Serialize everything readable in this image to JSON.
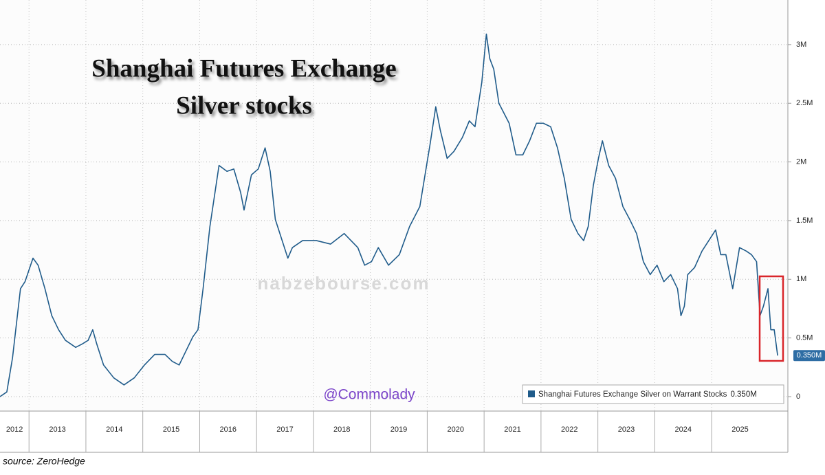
{
  "chart_data": {
    "type": "line",
    "title": [
      "Shanghai Futures Exchange",
      "Silver stocks"
    ],
    "source": "source: ZeroHedge",
    "watermark": "nabzebourse.com",
    "handle": "@Commolady",
    "legend": "lower right",
    "grid": true,
    "xlim": [
      2012.49,
      2026.34
    ],
    "xticks": [
      2012,
      2013,
      2014,
      2015,
      2016,
      2017,
      2018,
      2019,
      2020,
      2021,
      2022,
      2023,
      2024,
      2025
    ],
    "ylim": [
      -123000,
      3380000
    ],
    "yticks": [
      {
        "value": 0,
        "label": "0"
      },
      {
        "value": 500000,
        "label": "0.5M"
      },
      {
        "value": 1000000,
        "label": "1M"
      },
      {
        "value": 1500000,
        "label": "1.5M"
      },
      {
        "value": 2000000,
        "label": "2M"
      },
      {
        "value": 2500000,
        "label": "2.5M"
      },
      {
        "value": 3000000,
        "label": "3M"
      }
    ],
    "x": [
      2012.49,
      2012.61,
      2012.71,
      2012.85,
      2012.93,
      2013.07,
      2013.16,
      2013.28,
      2013.4,
      2013.52,
      2013.64,
      2013.82,
      2013.94,
      2014.04,
      2014.12,
      2014.19,
      2014.31,
      2014.49,
      2014.67,
      2014.85,
      2015.03,
      2015.21,
      2015.39,
      2015.52,
      2015.64,
      2015.76,
      2015.88,
      2015.97,
      2016.06,
      2016.18,
      2016.34,
      2016.48,
      2016.6,
      2016.72,
      2016.78,
      2016.91,
      2017.03,
      2017.15,
      2017.24,
      2017.33,
      2017.45,
      2017.55,
      2017.63,
      2017.81,
      2018.05,
      2018.3,
      2018.54,
      2018.66,
      2018.78,
      2018.9,
      2019.02,
      2019.14,
      2019.32,
      2019.51,
      2019.69,
      2019.87,
      2020.05,
      2020.15,
      2020.23,
      2020.35,
      2020.47,
      2020.62,
      2020.74,
      2020.84,
      2020.96,
      2021.04,
      2021.1,
      2021.17,
      2021.26,
      2021.44,
      2021.56,
      2021.68,
      2021.8,
      2021.92,
      2022.04,
      2022.17,
      2022.29,
      2022.41,
      2022.53,
      2022.65,
      2022.75,
      2022.83,
      2022.92,
      2023.01,
      2023.08,
      2023.19,
      2023.31,
      2023.44,
      2023.56,
      2023.68,
      2023.8,
      2023.92,
      2024.04,
      2024.16,
      2024.28,
      2024.4,
      2024.46,
      2024.52,
      2024.58,
      2024.7,
      2024.83,
      2024.95,
      2025.07,
      2025.16,
      2025.25,
      2025.37,
      2025.49,
      2025.61,
      2025.7,
      2025.79,
      2025.85,
      2025.91,
      2025.99,
      2026.04,
      2026.1,
      2026.16
    ],
    "series": [
      {
        "name": "Shanghai Futures Exchange Silver on Warrant Stocks",
        "color": "#1f5b8a",
        "values": [
          0,
          40000,
          330000,
          920000,
          980000,
          1180000,
          1120000,
          920000,
          690000,
          570000,
          480000,
          420000,
          450000,
          480000,
          570000,
          450000,
          270000,
          160000,
          100000,
          160000,
          270000,
          360000,
          360000,
          300000,
          270000,
          390000,
          510000,
          570000,
          920000,
          1450000,
          1970000,
          1920000,
          1940000,
          1740000,
          1590000,
          1890000,
          1940000,
          2120000,
          1920000,
          1510000,
          1330000,
          1180000,
          1270000,
          1330000,
          1330000,
          1300000,
          1390000,
          1330000,
          1270000,
          1120000,
          1150000,
          1270000,
          1120000,
          1210000,
          1450000,
          1620000,
          2150000,
          2470000,
          2270000,
          2030000,
          2090000,
          2210000,
          2350000,
          2300000,
          2680000,
          3090000,
          2880000,
          2790000,
          2500000,
          2330000,
          2060000,
          2060000,
          2180000,
          2330000,
          2330000,
          2300000,
          2120000,
          1860000,
          1510000,
          1390000,
          1330000,
          1450000,
          1800000,
          2030000,
          2180000,
          1970000,
          1860000,
          1620000,
          1510000,
          1390000,
          1150000,
          1040000,
          1120000,
          980000,
          1040000,
          920000,
          690000,
          770000,
          1040000,
          1100000,
          1240000,
          1330000,
          1420000,
          1210000,
          1210000,
          920000,
          1270000,
          1240000,
          1210000,
          1150000,
          690000,
          770000,
          920000,
          570000,
          570000,
          350000
        ],
        "value_labels": [
          null,
          null,
          null,
          null,
          null,
          null,
          null,
          null,
          null,
          null,
          null,
          null,
          null,
          null,
          null,
          null,
          null,
          null,
          null,
          null,
          null,
          null,
          null,
          null,
          null,
          null,
          null,
          null,
          null,
          null,
          null,
          null,
          null,
          null,
          null,
          null,
          null,
          null,
          null,
          null,
          null,
          null,
          null,
          null,
          null,
          null,
          null,
          null,
          null,
          null,
          null,
          null,
          null,
          null,
          null,
          null,
          null,
          null,
          null,
          null,
          null,
          null,
          null,
          null,
          null,
          null,
          null,
          null,
          null,
          null,
          null,
          null,
          null,
          null,
          null,
          null,
          null,
          null,
          null,
          null,
          null,
          null,
          null,
          null,
          null,
          null,
          null,
          null,
          null,
          null,
          null,
          null,
          null,
          null,
          null,
          null,
          null,
          null,
          null,
          null,
          null,
          null,
          null,
          null,
          null,
          null,
          null,
          null,
          null,
          null,
          null,
          null,
          null,
          null,
          null,
          "0.350M"
        ]
      }
    ]
  }
}
